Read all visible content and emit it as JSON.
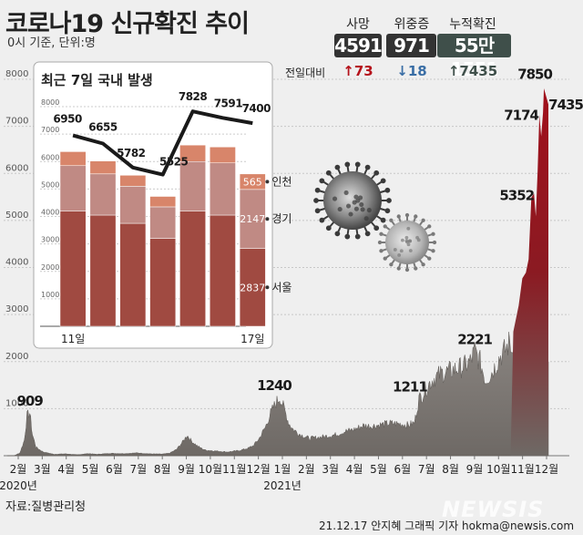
{
  "header": {
    "title": "코로나19 신규확진 추이",
    "subtitle": "0시 기준, 단위:명"
  },
  "stats": {
    "delta_label": "전일대비",
    "items": [
      {
        "label": "사망",
        "value": "4591",
        "delta": "↑73",
        "box_color": "#333333",
        "delta_color": "#b5121b"
      },
      {
        "label": "위중증",
        "value": "971",
        "delta": "↓18",
        "box_color": "#333333",
        "delta_color": "#3a6ea5"
      },
      {
        "label": "누적확진",
        "value": "55만1551",
        "delta": "↑7435",
        "box_color": "#3f4f4a",
        "delta_color": "#3f4f4a"
      }
    ]
  },
  "footer": {
    "source": "자료:질병관리청",
    "credit": "21.12.17 안지혜 그래픽 기자 hokma@newsis.com",
    "watermark": "NEWSIS"
  },
  "chart_data": [
    {
      "type": "area",
      "ylim": [
        0,
        8000
      ],
      "y_ticks": [
        1000,
        2000,
        3000,
        4000,
        5000,
        6000,
        7000,
        8000
      ],
      "x_tick_labels": [
        "2월",
        "3월",
        "4월",
        "5월",
        "6월",
        "7월",
        "8월",
        "9월",
        "10월",
        "11월",
        "12월",
        "1월",
        "2월",
        "3월",
        "4월",
        "5월",
        "6월",
        "7월",
        "8월",
        "9월",
        "10월",
        "11월",
        "12월"
      ],
      "year_labels": [
        {
          "text": "2020년",
          "at": "2월"
        },
        {
          "text": "2021년",
          "at": "1월"
        }
      ],
      "series": [
        {
          "points": [
            [
              0,
              0
            ],
            [
              8,
              5
            ],
            [
              14,
              60
            ],
            [
              19,
              330
            ],
            [
              22,
              850
            ],
            [
              25,
              909
            ],
            [
              28,
              450
            ],
            [
              32,
              180
            ],
            [
              40,
              80
            ],
            [
              52,
              30
            ],
            [
              64,
              40
            ],
            [
              78,
              20
            ],
            [
              90,
              45
            ],
            [
              100,
              30
            ],
            [
              115,
              50
            ],
            [
              130,
              45
            ],
            [
              145,
              60
            ],
            [
              158,
              40
            ],
            [
              172,
              35
            ],
            [
              180,
              50
            ],
            [
              188,
              130
            ],
            [
              195,
              290
            ],
            [
              200,
              440
            ],
            [
              205,
              310
            ],
            [
              212,
              200
            ],
            [
              220,
              120
            ],
            [
              232,
              100
            ],
            [
              245,
              80
            ],
            [
              258,
              110
            ],
            [
              268,
              160
            ],
            [
              274,
              220
            ],
            [
              280,
              360
            ],
            [
              287,
              600
            ],
            [
              293,
              900
            ],
            [
              298,
              1100
            ],
            [
              303,
              1240
            ],
            [
              308,
              1000
            ],
            [
              313,
              700
            ],
            [
              318,
              560
            ],
            [
              326,
              450
            ],
            [
              336,
              370
            ],
            [
              346,
              390
            ],
            [
              356,
              420
            ],
            [
              366,
              450
            ],
            [
              376,
              520
            ],
            [
              386,
              560
            ],
            [
              396,
              640
            ],
            [
              406,
              630
            ],
            [
              416,
              660
            ],
            [
              426,
              690
            ],
            [
              436,
              680
            ],
            [
              446,
              650
            ],
            [
              453,
              700
            ],
            [
              458,
              1211
            ],
            [
              462,
              1300
            ],
            [
              468,
              1500
            ],
            [
              475,
              1650
            ],
            [
              483,
              1750
            ],
            [
              492,
              1800
            ],
            [
              500,
              1850
            ],
            [
              508,
              1900
            ],
            [
              515,
              2000
            ],
            [
              520,
              2221
            ],
            [
              526,
              2000
            ],
            [
              532,
              1600
            ],
            [
              540,
              1800
            ],
            [
              548,
              2100
            ],
            [
              556,
              2300
            ],
            [
              563,
              2600
            ],
            [
              569,
              3300
            ],
            [
              573,
              3700
            ],
            [
              577,
              4000
            ],
            [
              580,
              4300
            ],
            [
              583,
              5352
            ],
            [
              586,
              5500
            ],
            [
              588,
              5300
            ],
            [
              590,
              6200
            ],
            [
              592,
              7174
            ],
            [
              594,
              7000
            ],
            [
              596,
              7400
            ],
            [
              597,
              7850
            ],
            [
              599,
              7435
            ],
            [
              602,
              7435
            ]
          ]
        }
      ],
      "annotations": [
        {
          "text": "909",
          "x": 25,
          "y": 909
        },
        {
          "text": "1240",
          "x": 303,
          "y": 1240
        },
        {
          "text": "1211",
          "x": 458,
          "y": 1211
        },
        {
          "text": "2221",
          "x": 520,
          "y": 2221
        },
        {
          "text": "5352",
          "x": 583,
          "y": 5352
        },
        {
          "text": "7174",
          "x": 592,
          "y": 7174
        },
        {
          "text": "7850",
          "x": 597,
          "y": 7850
        },
        {
          "text": "7435",
          "x": 599,
          "y": 7435
        }
      ]
    },
    {
      "type": "bar",
      "title": "최근 7일 국내 발생",
      "ylim": [
        0,
        8000
      ],
      "y_ticks": [
        1000,
        2000,
        3000,
        4000,
        5000,
        6000,
        7000,
        8000
      ],
      "x_labels": [
        "11일",
        "",
        "",
        "",
        "",
        "",
        "17일"
      ],
      "stack_order": [
        "서울",
        "경기",
        "인천"
      ],
      "stacks": [
        {
          "서울": 4200,
          "경기": 1650,
          "인천": 510
        },
        {
          "서울": 4050,
          "경기": 1500,
          "인천": 470
        },
        {
          "서울": 3750,
          "경기": 1350,
          "인천": 400
        },
        {
          "서울": 3200,
          "경기": 1150,
          "인천": 380
        },
        {
          "서울": 4200,
          "경기": 1800,
          "인천": 600
        },
        {
          "서울": 4050,
          "경기": 1900,
          "인천": 580
        },
        {
          "서울": 2837,
          "경기": 2147,
          "인천": 565
        }
      ],
      "stack_colors": {
        "서울": "#a04a41",
        "경기": "#c08a84",
        "인천": "#d8856a"
      },
      "line": {
        "values": [
          6950,
          6655,
          5782,
          5525,
          7828,
          7591,
          7400
        ]
      },
      "value_labels": [
        {
          "series": "인천",
          "text": "565",
          "index": 6
        },
        {
          "series": "경기",
          "text": "2147",
          "index": 6
        },
        {
          "series": "서울",
          "text": "2837",
          "index": 6
        }
      ],
      "legend": [
        "인천",
        "경기",
        "서울"
      ]
    }
  ]
}
